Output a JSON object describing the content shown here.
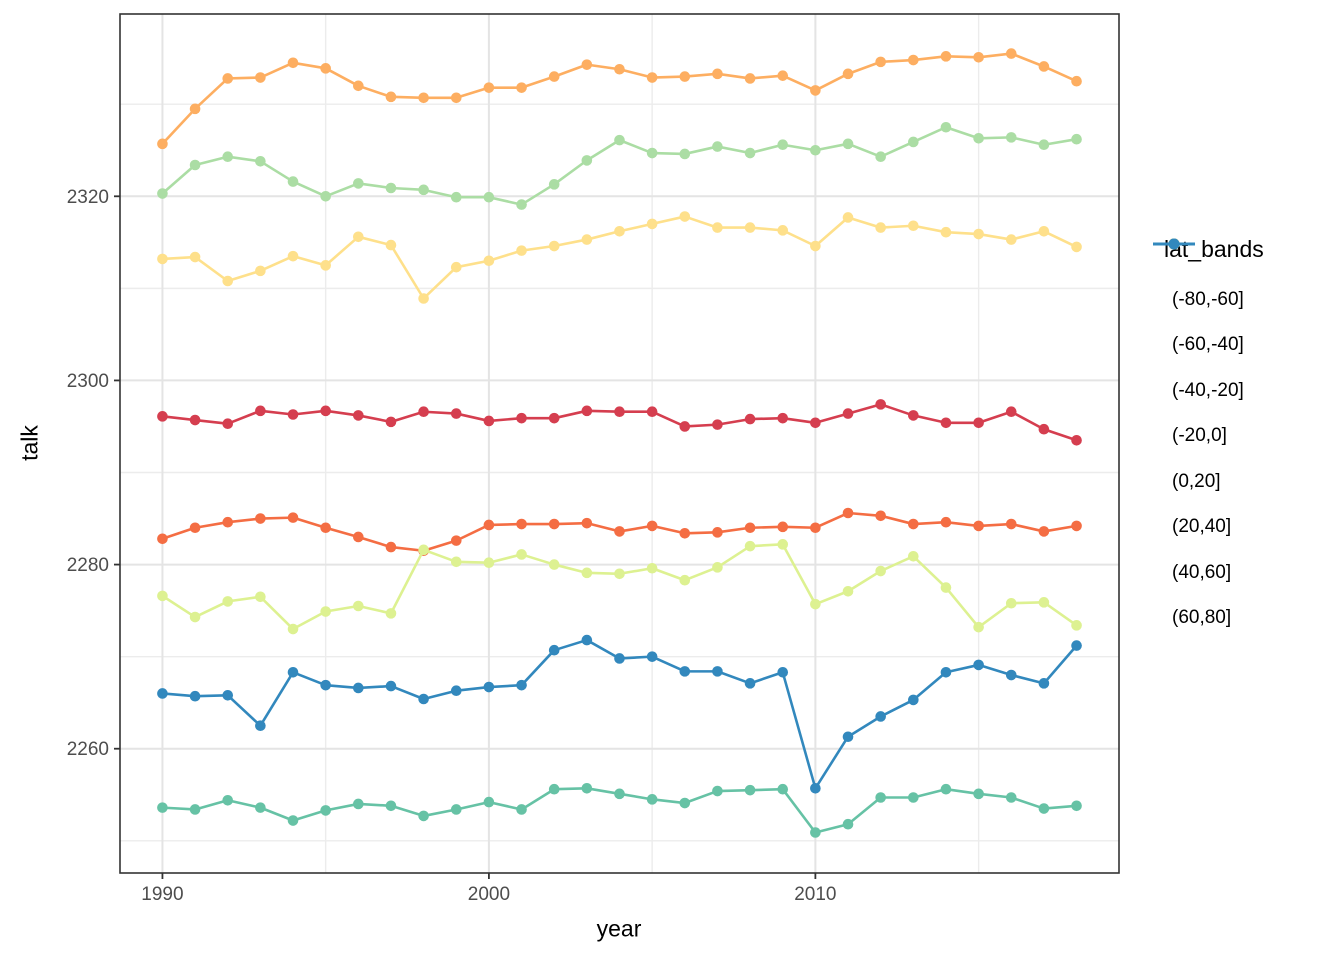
{
  "figure": {
    "x_axis_title": "year",
    "y_axis_title": "talk",
    "legend_title": "lat_bands"
  },
  "chart_data": {
    "type": "line",
    "title": "",
    "xlabel": "year",
    "ylabel": "talk",
    "legend_title": "lat_bands",
    "legend_position": "right",
    "grid": true,
    "x": [
      1990,
      1991,
      1992,
      1993,
      1994,
      1995,
      1996,
      1997,
      1998,
      1999,
      2000,
      2001,
      2002,
      2003,
      2004,
      2005,
      2006,
      2007,
      2008,
      2009,
      2010,
      2011,
      2012,
      2013,
      2014,
      2015,
      2016,
      2017,
      2018
    ],
    "x_ticks": [
      1990,
      2000,
      2010
    ],
    "x_minor_ticks": [
      1995,
      2005,
      2015
    ],
    "y_ticks": [
      2260,
      2280,
      2300,
      2320
    ],
    "y_minor_ticks": [
      2250,
      2270,
      2290,
      2310,
      2330
    ],
    "xlim": [
      1988.7,
      2019.3
    ],
    "ylim": [
      2246.5,
      2339.8
    ],
    "panel_border_color": "#333333",
    "grid_major_color": "#e4e4e4",
    "grid_minor_color": "#ececec",
    "tick_label_color": "#4d4d4d",
    "series": [
      {
        "name": "(-80,-60]",
        "color": "#d53e4f",
        "values": [
          2296.1,
          2295.7,
          2295.3,
          2296.7,
          2296.3,
          2296.7,
          2296.2,
          2295.5,
          2296.6,
          2296.4,
          2295.6,
          2295.9,
          2295.9,
          2296.7,
          2296.6,
          2296.6,
          2295.0,
          2295.2,
          2295.8,
          2295.9,
          2295.4,
          2296.4,
          2297.4,
          2296.2,
          2295.4,
          2295.4,
          2296.6,
          2294.7,
          2293.5
        ]
      },
      {
        "name": "(-60,-40]",
        "color": "#f46d43",
        "values": [
          2282.8,
          2284.0,
          2284.6,
          2285.0,
          2285.1,
          2284.0,
          2283.0,
          2281.9,
          2281.5,
          2282.6,
          2284.3,
          2284.4,
          2284.4,
          2284.5,
          2283.6,
          2284.2,
          2283.4,
          2283.5,
          2284.0,
          2284.1,
          2284.0,
          2285.6,
          2285.3,
          2284.4,
          2284.6,
          2284.2,
          2284.4,
          2283.6,
          2284.2
        ]
      },
      {
        "name": "(-40,-20]",
        "color": "#fdae61",
        "values": [
          2325.7,
          2329.5,
          2332.8,
          2332.9,
          2334.5,
          2333.9,
          2332.0,
          2330.8,
          2330.7,
          2330.7,
          2331.8,
          2331.8,
          2333.0,
          2334.3,
          2333.8,
          2332.9,
          2333.0,
          2333.3,
          2332.8,
          2333.1,
          2331.5,
          2333.3,
          2334.6,
          2334.8,
          2335.2,
          2335.1,
          2335.5,
          2334.1,
          2332.5
        ]
      },
      {
        "name": "(-20,0]",
        "color": "#fee08b",
        "values": [
          2313.2,
          2313.4,
          2310.8,
          2311.9,
          2313.5,
          2312.5,
          2315.6,
          2314.7,
          2308.9,
          2312.3,
          2313.0,
          2314.1,
          2314.6,
          2315.3,
          2316.2,
          2317.0,
          2317.8,
          2316.6,
          2316.6,
          2316.3,
          2314.6,
          2317.7,
          2316.6,
          2316.8,
          2316.1,
          2315.9,
          2315.3,
          2316.2,
          2314.5
        ]
      },
      {
        "name": "(0,20]",
        "color": "#ddf191",
        "values": [
          2276.6,
          2274.3,
          2276.0,
          2276.5,
          2273.0,
          2274.9,
          2275.5,
          2274.7,
          2281.6,
          2280.3,
          2280.2,
          2281.1,
          2280.0,
          2279.1,
          2279.0,
          2279.6,
          2278.3,
          2279.7,
          2282.0,
          2282.2,
          2275.7,
          2277.1,
          2279.3,
          2280.9,
          2277.5,
          2273.2,
          2275.8,
          2275.9,
          2273.4
        ]
      },
      {
        "name": "(20,40]",
        "color": "#abdda4",
        "values": [
          2320.3,
          2323.4,
          2324.3,
          2323.8,
          2321.6,
          2320.0,
          2321.4,
          2320.9,
          2320.7,
          2319.9,
          2319.9,
          2319.1,
          2321.3,
          2323.9,
          2326.1,
          2324.7,
          2324.6,
          2325.4,
          2324.7,
          2325.6,
          2325.0,
          2325.7,
          2324.3,
          2325.9,
          2327.5,
          2326.3,
          2326.4,
          2325.6,
          2326.2
        ]
      },
      {
        "name": "(40,60]",
        "color": "#66c2a5",
        "values": [
          2253.6,
          2253.4,
          2254.4,
          2253.6,
          2252.2,
          2253.3,
          2254.0,
          2253.8,
          2252.7,
          2253.4,
          2254.2,
          2253.4,
          2255.6,
          2255.7,
          2255.1,
          2254.5,
          2254.1,
          2255.4,
          2255.5,
          2255.6,
          2250.9,
          2251.8,
          2254.7,
          2254.7,
          2255.6,
          2255.1,
          2254.7,
          2253.5,
          2253.8
        ]
      },
      {
        "name": "(60,80]",
        "color": "#3288bd",
        "values": [
          2266.0,
          2265.7,
          2265.8,
          2262.5,
          2268.3,
          2266.9,
          2266.6,
          2266.8,
          2265.4,
          2266.3,
          2266.7,
          2266.9,
          2270.7,
          2271.8,
          2269.8,
          2270.0,
          2268.4,
          2268.4,
          2267.1,
          2268.3,
          2255.7,
          2261.3,
          2263.5,
          2265.3,
          2268.3,
          2269.1,
          2268.0,
          2267.1,
          2271.2
        ]
      }
    ]
  }
}
